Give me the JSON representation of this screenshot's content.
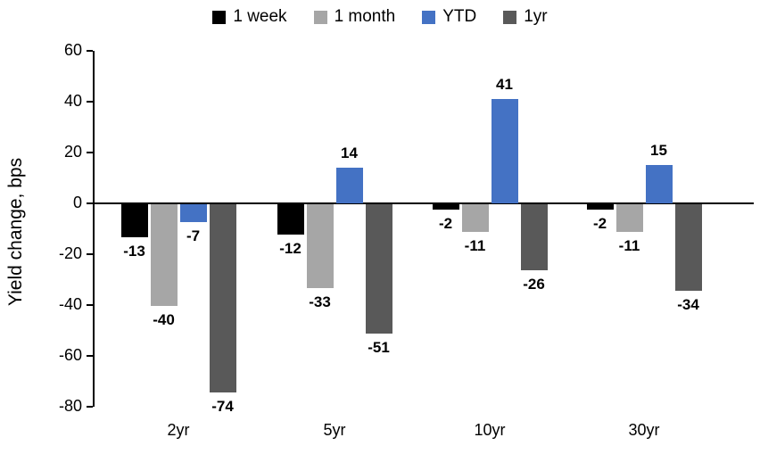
{
  "chart_data": {
    "type": "bar",
    "title": "",
    "xlabel": "",
    "ylabel": "Yield change, bps",
    "ylim": [
      -80,
      60
    ],
    "yticks": [
      60,
      40,
      20,
      0,
      -20,
      -40,
      -60,
      -80
    ],
    "grid": false,
    "legend_position": "top",
    "data_labels": true,
    "categories": [
      "2yr",
      "5yr",
      "10yr",
      "30yr"
    ],
    "series": [
      {
        "name": "1 week",
        "color": "#000000",
        "values": [
          -13,
          -12,
          -2,
          -2
        ]
      },
      {
        "name": "1 month",
        "color": "#a6a6a6",
        "values": [
          -40,
          -33,
          -11,
          -11
        ]
      },
      {
        "name": "YTD",
        "color": "#4472c4",
        "values": [
          -7,
          14,
          41,
          15
        ]
      },
      {
        "name": "1yr",
        "color": "#595959",
        "values": [
          -74,
          -51,
          -26,
          -34
        ]
      }
    ]
  }
}
